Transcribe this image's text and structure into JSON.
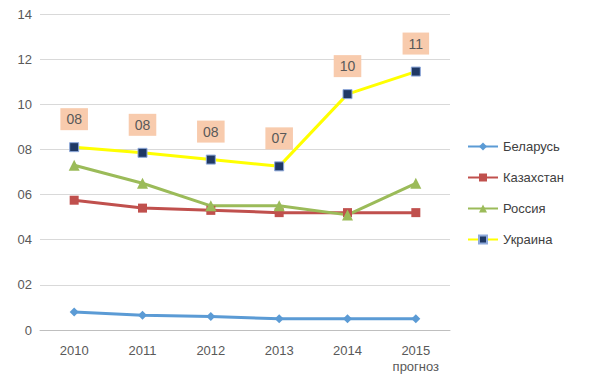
{
  "chart_data": {
    "type": "line",
    "categories": [
      "2010",
      "2011",
      "2012",
      "2013",
      "2014",
      "2015\nпрогноз"
    ],
    "series": [
      {
        "name": "Беларусь",
        "color": "#5b9bd5",
        "marker": "diamond",
        "values": [
          0.8,
          0.65,
          0.6,
          0.5,
          0.5,
          0.5
        ]
      },
      {
        "name": "Казахстан",
        "color": "#c0504d",
        "marker": "square",
        "values": [
          5.75,
          5.4,
          5.3,
          5.2,
          5.2,
          5.2
        ]
      },
      {
        "name": "Россия",
        "color": "#9bbb59",
        "marker": "triangle",
        "values": [
          7.3,
          6.5,
          5.5,
          5.5,
          5.1,
          6.5
        ]
      },
      {
        "name": "Украина",
        "color": "#ffff00",
        "marker": "square",
        "values": [
          8.1,
          7.85,
          7.55,
          7.25,
          10.45,
          11.45
        ],
        "value_labels": [
          "08",
          "08",
          "08",
          "07",
          "10",
          "11"
        ]
      }
    ],
    "ylim": [
      0,
      14
    ],
    "yticks": [
      0,
      {
        "value": 2,
        "label": "02"
      },
      {
        "value": 4,
        "label": "04"
      },
      {
        "value": 6,
        "label": "06"
      },
      {
        "value": 8,
        "label": "08"
      },
      10,
      12,
      14
    ],
    "grid": true,
    "legend": "right",
    "data_labels": true
  }
}
